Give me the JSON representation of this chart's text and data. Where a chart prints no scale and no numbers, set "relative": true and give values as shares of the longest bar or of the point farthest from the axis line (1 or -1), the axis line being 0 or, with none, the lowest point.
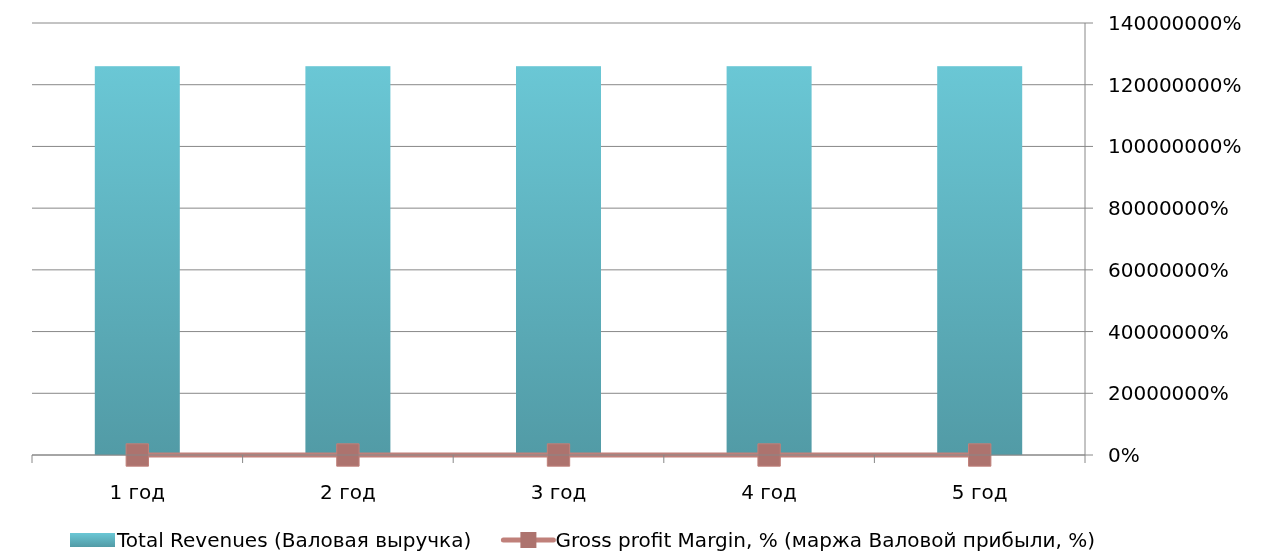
{
  "chart_data": {
    "type": "bar",
    "categories": [
      "1 год",
      "2 год",
      "3 год",
      "4 год",
      "5 год"
    ],
    "relative": true,
    "series": [
      {
        "name": "Total Revenues (Валовая выручка)",
        "color": "#5fb3bf",
        "values": [
          1,
          1,
          1,
          1,
          1
        ]
      },
      {
        "name": "Gross profit Margin, % (маржа Валовой прибыли, %)",
        "type": "line",
        "axis": "y2",
        "color": "#c0807a",
        "marker": "square",
        "values": [
          0,
          0,
          0,
          0,
          0
        ]
      }
    ],
    "y2lim": [
      0,
      140000000
    ],
    "y2ticks": [
      {
        "value": 0,
        "label": "0%"
      },
      {
        "value": 20000000,
        "label": "20000000%"
      },
      {
        "value": 40000000,
        "label": "40000000%"
      },
      {
        "value": 60000000,
        "label": "60000000%"
      },
      {
        "value": 80000000,
        "label": "80000000%"
      },
      {
        "value": 100000000,
        "label": "100000000%"
      },
      {
        "value": 120000000,
        "label": "120000000%"
      },
      {
        "value": 140000000,
        "label": "140000000%"
      }
    ],
    "grid": "y2",
    "legend": "bottom"
  }
}
